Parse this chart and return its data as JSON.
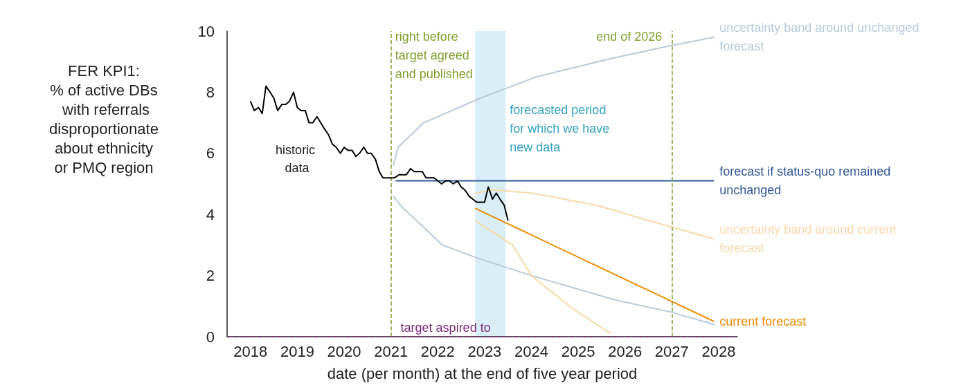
{
  "chart_data": {
    "type": "line",
    "ylabel": "FER KPI1:\n% of active DBs\n with referrals\ndisproportionate\nabout ethnicity\nor PMQ region",
    "xlabel": "date (per month) at the end of five year period",
    "xlim": [
      2017.5,
      2028.4
    ],
    "xticks": [
      2018,
      2019,
      2020,
      2021,
      2022,
      2023,
      2024,
      2025,
      2026,
      2027,
      2028
    ],
    "ylim": [
      0,
      10
    ],
    "yticks": [
      0,
      2,
      4,
      6,
      8,
      10
    ],
    "grid": false,
    "marker": "none",
    "series": [
      {
        "name": "historic data",
        "color": "#000000",
        "x": [
          2018.0,
          2018.08,
          2018.17,
          2018.25,
          2018.33,
          2018.42,
          2018.5,
          2018.58,
          2018.67,
          2018.75,
          2018.83,
          2018.92,
          2019.0,
          2019.08,
          2019.17,
          2019.25,
          2019.33,
          2019.42,
          2019.5,
          2019.58,
          2019.67,
          2019.75,
          2019.83,
          2019.92,
          2020.0,
          2020.08,
          2020.17,
          2020.25,
          2020.33,
          2020.42,
          2020.5,
          2020.58,
          2020.67,
          2020.75,
          2020.83,
          2020.92,
          2021.0,
          2021.08,
          2021.17,
          2021.25,
          2021.33,
          2021.42,
          2021.5,
          2021.58,
          2021.67,
          2021.75,
          2021.83,
          2021.92,
          2022.0,
          2022.08,
          2022.17,
          2022.25,
          2022.33,
          2022.42,
          2022.5,
          2022.58,
          2022.67,
          2022.75,
          2022.83,
          2022.92,
          2023.0,
          2023.08,
          2023.17,
          2023.25,
          2023.33,
          2023.42,
          2023.5
        ],
        "values": [
          7.7,
          7.4,
          7.5,
          7.3,
          8.2,
          8.0,
          7.8,
          7.4,
          7.6,
          7.6,
          7.7,
          8.0,
          7.5,
          7.4,
          7.4,
          7.0,
          7.0,
          7.2,
          7.0,
          6.8,
          6.6,
          6.3,
          6.2,
          6.0,
          6.2,
          6.1,
          6.1,
          5.9,
          6.0,
          6.2,
          6.0,
          6.0,
          5.8,
          5.4,
          5.2,
          5.2,
          5.2,
          5.2,
          5.3,
          5.3,
          5.3,
          5.5,
          5.4,
          5.4,
          5.4,
          5.2,
          5.2,
          5.2,
          5.1,
          5.0,
          5.1,
          5.1,
          5.0,
          5.1,
          4.9,
          4.8,
          4.6,
          4.5,
          4.4,
          4.4,
          4.4,
          4.9,
          4.5,
          4.7,
          4.5,
          4.3,
          3.8
        ]
      },
      {
        "name": "forecast if status-quo remained unchanged",
        "color": "#2f5597",
        "x": [
          2021.1,
          2027.9
        ],
        "values": [
          5.1,
          5.1
        ]
      },
      {
        "name": "uncertainty band around unchanged forecast",
        "color": "#b8c9dc",
        "x": [
          2021.05,
          2021.15,
          2021.7,
          2022.9,
          2024.1,
          2025.7,
          2026.9,
          2027.9
        ],
        "values": [
          5.6,
          6.2,
          7.0,
          7.8,
          8.5,
          9.1,
          9.5,
          9.8
        ]
      },
      {
        "color": "#b8c9dc",
        "x": [
          2021.05,
          2021.2,
          2022.1,
          2022.8,
          2024.0,
          2025.8,
          2027.0,
          2027.9
        ],
        "values": [
          4.6,
          4.3,
          3.0,
          2.6,
          2.0,
          1.2,
          0.8,
          0.4
        ]
      },
      {
        "name": "uncertainty band around current forecast",
        "color": "#f8d9a8",
        "x": [
          2022.8,
          2023.2,
          2024.0,
          2025.4,
          2026.5,
          2027.9
        ],
        "values": [
          4.7,
          4.8,
          4.7,
          4.3,
          3.8,
          3.2
        ]
      },
      {
        "color": "#f8d9a8",
        "x": [
          2022.8,
          2023.6,
          2024.0,
          2024.9,
          2025.7
        ],
        "values": [
          3.8,
          3.0,
          2.0,
          0.9,
          0.1
        ]
      },
      {
        "name": "current forecast",
        "color": "#ed8b00",
        "x": [
          2022.8,
          2027.9
        ],
        "values": [
          4.2,
          0.5
        ]
      }
    ],
    "ref_lines": [
      {
        "axis": "x",
        "value": 2021,
        "label": "right before target agreed and published",
        "color": "#7f9f2a",
        "line_style": "dashed"
      },
      {
        "axis": "x",
        "value": 2027,
        "label": "end of 2026",
        "color": "#7f9f2a",
        "line_style": "dashed"
      },
      {
        "axis": "y",
        "value": 0,
        "label": "target aspired to",
        "color": "#7b2a7b",
        "line_style": "dashed"
      }
    ],
    "bands": [
      {
        "axis": "x",
        "from": 2022.8,
        "to": 2023.45,
        "label": "forecasted period for which we have new data",
        "color": "#daeef7"
      }
    ]
  }
}
